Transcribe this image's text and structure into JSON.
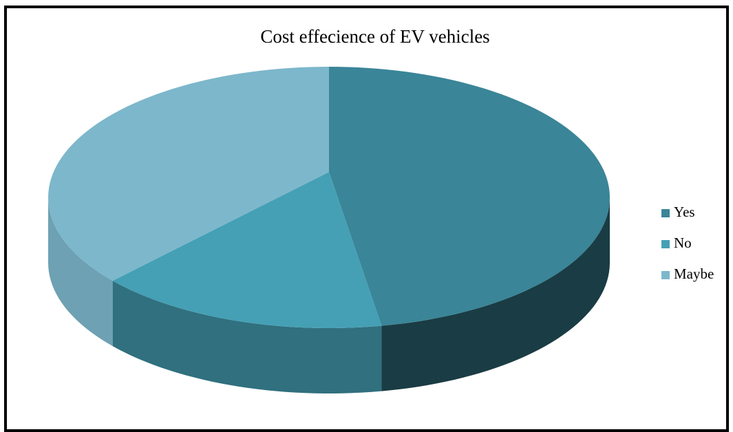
{
  "chart_data": {
    "type": "pie",
    "title": "Cost effecience of EV vehicles",
    "categories": [
      "Yes",
      "No",
      "Maybe"
    ],
    "values": [
      47,
      17,
      36
    ],
    "colors": [
      "#3a8598",
      "#45a0b5",
      "#7db7cb"
    ],
    "legend": "right"
  }
}
